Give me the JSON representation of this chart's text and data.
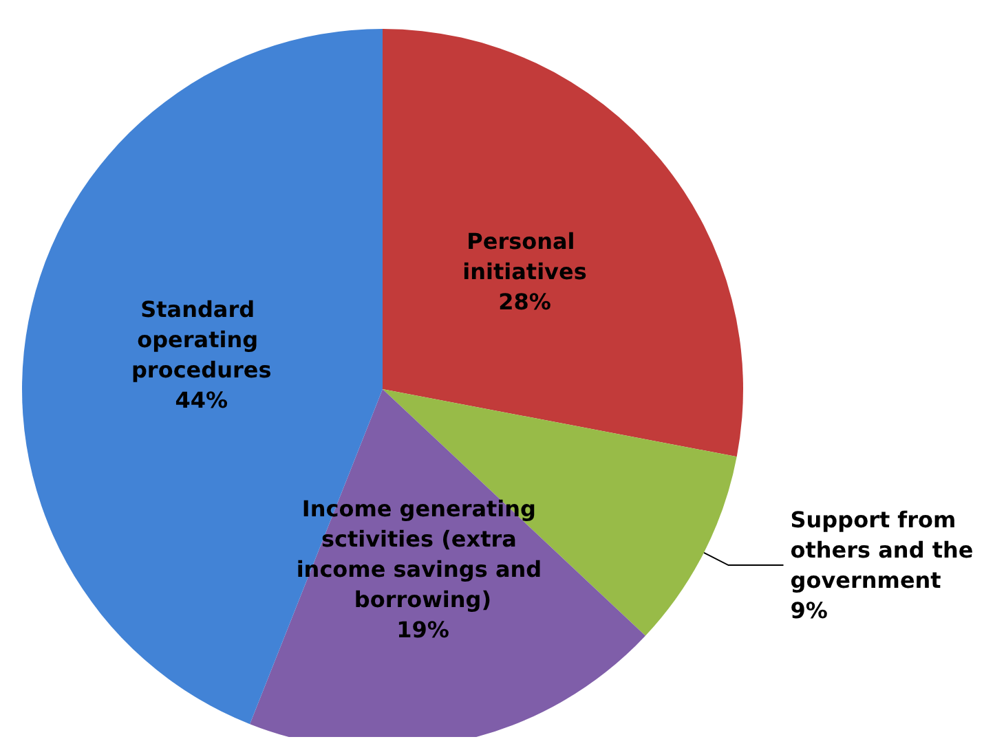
{
  "chart_data": {
    "type": "pie",
    "categories": [
      "Personal initiatives",
      "Support from others and the government",
      "Income generating sctivities (extra income savings and borrowing)",
      "Standard operating procedures"
    ],
    "values": [
      28,
      9,
      19,
      44
    ],
    "value_labels": [
      "28%",
      "9%",
      "19%",
      "44%"
    ],
    "colors": [
      "#c23b3a",
      "#98bb48",
      "#7f5ea9",
      "#4283d6"
    ],
    "legend": false
  }
}
